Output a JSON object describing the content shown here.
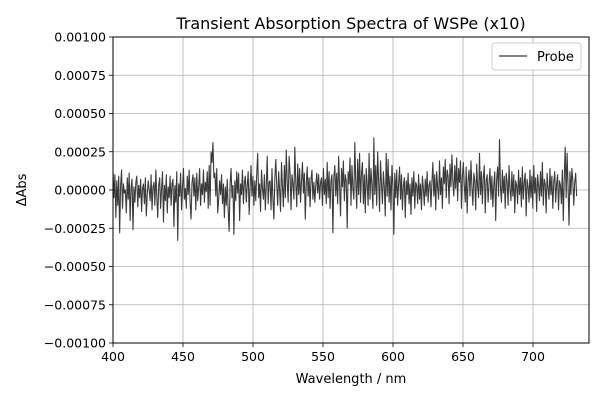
{
  "chart_data": {
    "type": "line",
    "title": "Transient Absorption Spectra of WSPe (x10)",
    "xlabel": "Wavelength / nm",
    "ylabel": "ΔAbs",
    "xlim": [
      400,
      740
    ],
    "ylim": [
      -0.001,
      0.001
    ],
    "xticks": [
      400,
      450,
      500,
      550,
      600,
      650,
      700
    ],
    "xtick_labels": [
      "400",
      "450",
      "500",
      "550",
      "600",
      "650",
      "700"
    ],
    "yticks": [
      -0.001,
      -0.00075,
      -0.0005,
      -0.00025,
      0.0,
      0.00025,
      0.0005,
      0.00075,
      0.001
    ],
    "ytick_labels": [
      "−0.00100",
      "−0.00075",
      "−0.00050",
      "−0.00025",
      "0.00000",
      "0.00025",
      "0.00050",
      "0.00075",
      "0.00100"
    ],
    "grid": true,
    "legend_position": "top-right",
    "series": [
      {
        "name": "Probe",
        "color": "#3b3b3b",
        "x_start": 400,
        "x_step": 0.68,
        "values": [
          0.00012,
          -5e-05,
          0.0001,
          -0.00018,
          6e-05,
          -0.0001,
          9e-05,
          -0.00028,
          3e-05,
          0.00013,
          -0.00012,
          4e-05,
          -2e-05,
          0.0,
          -0.00015,
          8e-05,
          -6e-05,
          0.00011,
          -0.0002,
          2e-05,
          7e-05,
          -0.00026,
          2e-05,
          -8e-05,
          5e-05,
          9e-05,
          -0.00011,
          3e-05,
          -5e-05,
          7e-05,
          -0.00014,
          1e-05,
          4e-05,
          -9e-05,
          8e-05,
          -0.00017,
          -3e-05,
          6e-05,
          0.0,
          -7e-05,
          0.0001,
          -0.00013,
          2e-05,
          5e-05,
          -0.0001,
          0.00013,
          -4e-05,
          -0.00018,
          3e-05,
          8e-05,
          -0.00012,
          1e-05,
          0.00012,
          -0.00021,
          3e-05,
          -7e-05,
          0.0001,
          -0.00015,
          2e-05,
          -5e-05,
          9e-05,
          -0.0001,
          4e-05,
          7e-05,
          -0.00024,
          3e-05,
          -8e-05,
          0.00012,
          -0.00033,
          4e-05,
          -4e-05,
          0.00011,
          -0.00013,
          2e-05,
          0.00014,
          -6e-05,
          1e-05,
          -0.00012,
          9e-05,
          -3e-05,
          0.00013,
          -9e-05,
          -0.00019,
          5e-05,
          0.0001,
          -4e-05,
          8e-05,
          -0.00013,
          0.00011,
          -7e-05,
          2e-05,
          0.00014,
          -0.0001,
          4e-05,
          -3e-05,
          0.00013,
          -8e-05,
          5e-05,
          -1e-05,
          0.00012,
          -0.00012,
          0.00016,
          -0.0001,
          0.00025,
          0.00018,
          0.00031,
          8e-05,
          0.00011,
          -4e-05,
          0.00014,
          -0.00015,
          -6e-05,
          6e-05,
          -3e-05,
          0.0001,
          -9e-05,
          4e-05,
          -0.00018,
          2e-05,
          -0.0001,
          7e-05,
          -0.00014,
          -0.00027,
          4e-05,
          0.00014,
          -5e-05,
          3e-05,
          -0.00029,
          6e-05,
          -7e-05,
          0.00012,
          -2e-05,
          0.00011,
          -0.0002,
          4e-05,
          -3e-05,
          0.00013,
          -9e-05,
          5e-05,
          9e-05,
          -8e-05,
          3e-05,
          0.00012,
          -0.00016,
          2e-05,
          0.00016,
          -4e-05,
          9e-05,
          -0.0001,
          6e-05,
          -7e-05,
          0.00011,
          0.00024,
          -5e-05,
          4e-05,
          -0.00014,
          0.00013,
          1e-05,
          -6e-05,
          0.0001,
          -0.00013,
          3e-05,
          0.00022,
          -9e-05,
          5e-05,
          6e-05,
          -0.00013,
          0.00014,
          -6e-05,
          -0.00019,
          8e-05,
          0.0002,
          3e-05,
          -0.0001,
          0.00012,
          0.0,
          -0.00014,
          0.00018,
          2e-05,
          -0.00011,
          0.00016,
          -5e-05,
          0.00026,
          5e-05,
          -8e-05,
          0.00022,
          0.00011,
          -0.00013,
          0.0001,
          4e-05,
          -6e-05,
          0.00028,
          5e-05,
          -0.00011,
          0.00017,
          -3e-05,
          0.00014,
          -8e-05,
          6e-05,
          0.00018,
          -2e-05,
          0.00011,
          -0.00019,
          4e-05,
          0.00015,
          -4e-05,
          8e-05,
          -0.00011,
          7e-05,
          0.00013,
          -6e-05,
          5e-05,
          -8e-05,
          3e-05,
          0.00011,
          -2e-05,
          0.0001,
          -6e-05,
          5e-05,
          8e-05,
          -0.0001,
          0.00014,
          -3e-05,
          7e-05,
          -9e-05,
          0.00018,
          -5e-05,
          0.00012,
          -0.00012,
          6e-05,
          0.0001,
          -0.00028,
          8e-05,
          0.00016,
          -4e-05,
          0.00011,
          -9e-05,
          0.00022,
          3e-05,
          -0.00017,
          0.00014,
          2e-05,
          0.00019,
          -7e-05,
          0.0001,
          6e-05,
          -0.00025,
          0.00012,
          4e-05,
          0.00021,
          -0.0001,
          0.00016,
          1e-05,
          -6e-05,
          0.00031,
          6e-05,
          -0.00012,
          0.0002,
          -3e-05,
          0.00024,
          -8e-05,
          0.00011,
          0.00018,
          -9e-05,
          0.0001,
          -0.00015,
          0.00014,
          4e-05,
          -0.0001,
          0.00024,
          -6e-05,
          0.00014,
          3e-05,
          -0.00012,
          0.00034,
          -3e-05,
          0.00016,
          -0.0001,
          0.00025,
          6e-05,
          -0.00014,
          0.00019,
          4e-05,
          -9e-05,
          0.00012,
          2e-05,
          -0.00017,
          0.00024,
          -4e-05,
          0.0002,
          -8e-05,
          9e-05,
          -0.00013,
          0.00016,
          3e-05,
          -0.00029,
          0.00011,
          -5e-05,
          0.00013,
          -0.0001,
          4e-05,
          0.00015,
          -6e-05,
          0.0001,
          -0.00013,
          3e-05,
          8e-05,
          -0.00018,
          6e-05,
          -3e-05,
          0.00011,
          -9e-05,
          4e-05,
          -0.00016,
          8e-05,
          -4e-05,
          0.00012,
          -0.00012,
          5e-05,
          3e-05,
          -9e-05,
          0.0001,
          -6e-05,
          4e-05,
          -0.00013,
          9e-05,
          1e-05,
          -0.0001,
          7e-05,
          -4e-05,
          0.00012,
          -8e-05,
          3e-05,
          6e-05,
          -0.00011,
          5e-05,
          0.00018,
          -4e-05,
          0.0001,
          -0.00013,
          0.00012,
          2e-05,
          -6e-05,
          0.00019,
          -3e-05,
          8e-05,
          -0.00012,
          0.00015,
          4e-05,
          0.0002,
          -5e-05,
          0.00013,
          9e-05,
          -9e-05,
          0.00017,
          2e-05,
          0.00023,
          6e-05,
          -4e-05,
          0.00016,
          1e-05,
          0.00021,
          -7e-05,
          0.00014,
          5e-05,
          0.00019,
          -0.00012,
          9e-05,
          0.00018,
          3e-05,
          -8e-05,
          0.00015,
          -0.00015,
          7e-05,
          0.00013,
          -4e-05,
          0.00019,
          2e-05,
          -0.0001,
          0.00011,
          6e-05,
          -0.00013,
          0.00017,
          2e-05,
          -5e-05,
          0.00024,
          -3e-05,
          0.00012,
          -9e-05,
          8e-05,
          0.00016,
          -0.00015,
          6e-05,
          0.0001,
          -8e-05,
          4e-05,
          0.00014,
          -6e-05,
          9e-05,
          -0.00011,
          3e-05,
          0.00012,
          -0.0002,
          7e-05,
          0.00015,
          -4e-05,
          0.00033,
          2e-05,
          -8e-05,
          0.00013,
          -2e-05,
          9e-05,
          -0.00012,
          0.00011,
          5e-05,
          -0.0001,
          0.00016,
          1e-05,
          -7e-05,
          0.00012,
          -4e-05,
          0.0001,
          -0.00015,
          6e-05,
          3e-05,
          -9e-05,
          0.00013,
          -3e-05,
          8e-05,
          -0.00011,
          0.00015,
          -6e-05,
          5e-05,
          0.00011,
          -0.00017,
          7e-05,
          2e-05,
          -8e-05,
          0.00013,
          -5e-05,
          9e-05,
          -0.00012,
          0.00016,
          -2e-05,
          8e-05,
          -0.00014,
          0.0001,
          3e-05,
          -7e-05,
          0.00012,
          -4e-05,
          0.00018,
          -0.0001,
          7e-05,
          4e-05,
          -0.00015,
          0.00011,
          1e-05,
          -6e-05,
          0.00014,
          -3e-05,
          9e-05,
          -0.00012,
          5e-05,
          0.00012,
          -8e-05,
          4e-05,
          0.0001,
          -0.00013,
          6e-05,
          3e-05,
          -9e-05,
          0.00013,
          -0.0002,
          8e-05,
          0.00028,
          -5e-05,
          0.00024,
          2e-05,
          -0.00023,
          0.00012,
          -3e-05,
          0.00014,
          6e-05,
          -0.0001,
          5e-05,
          0.00011,
          -4e-05
        ]
      }
    ]
  }
}
